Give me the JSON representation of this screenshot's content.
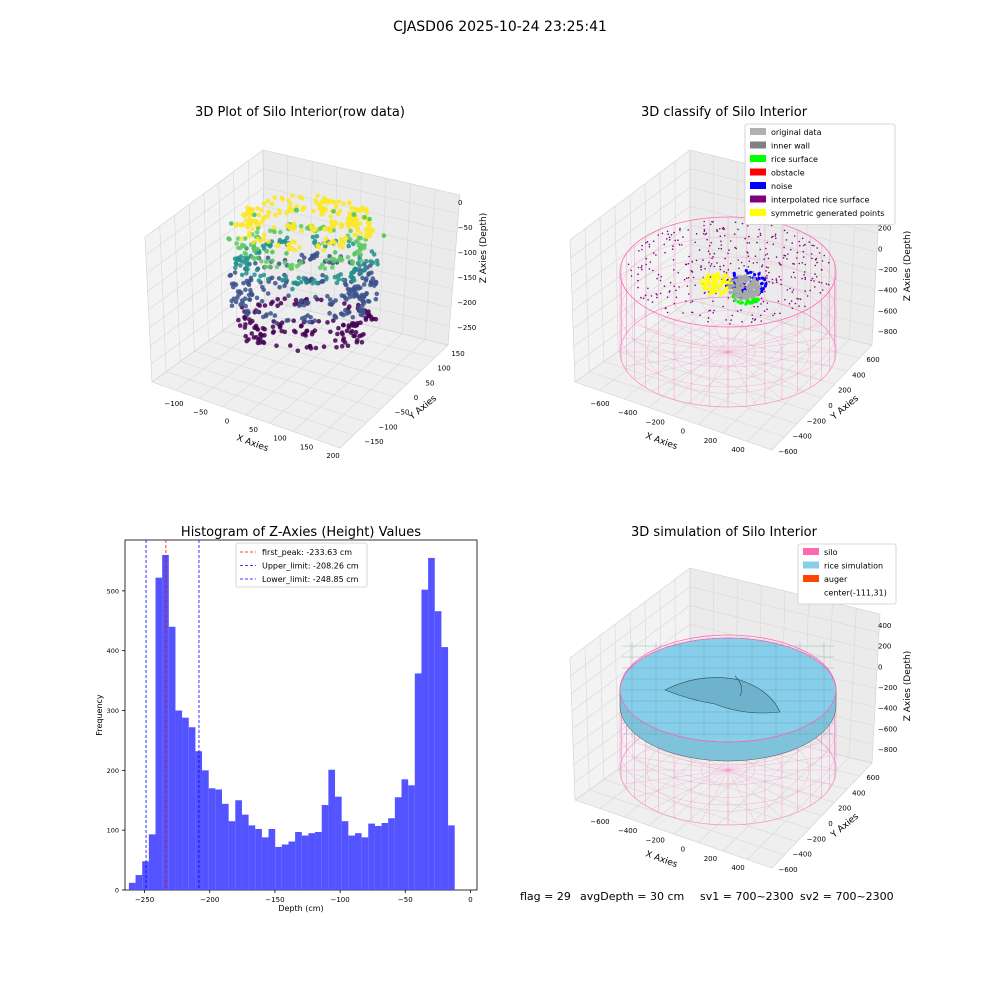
{
  "figure": {
    "suptitle": "CJASD06 2025-10-24 23:25:41",
    "status": {
      "flag": "flag = 29",
      "avg_depth": "avgDepth = 30 cm",
      "sv1": "sv1 = 700~2300",
      "sv2": "sv2 = 700~2300"
    }
  },
  "panel_raw": {
    "title": "3D Plot of Silo Interior(row data)",
    "xlabel": "X Axies",
    "ylabel": "Y Axies",
    "zlabel": "Z Axies (Depth)",
    "xticks": [
      "−100",
      "−50",
      "0",
      "50",
      "100",
      "150",
      "200"
    ],
    "yticks": [
      "150",
      "100",
      "50",
      "0",
      "−50",
      "−100",
      "−150"
    ],
    "zticks": [
      "0",
      "−50",
      "−100",
      "−150",
      "−200",
      "−250"
    ],
    "colormap": [
      "#440154",
      "#3b528b",
      "#21918c",
      "#5ec962",
      "#fde725"
    ]
  },
  "panel_classify": {
    "title": "3D classify of Silo Interior",
    "xlabel": "X Axies",
    "ylabel": "Y Axies",
    "zlabel": "Z Axies (Depth)",
    "xticks": [
      "−600",
      "−400",
      "−200",
      "0",
      "200",
      "400"
    ],
    "yticks": [
      "600",
      "400",
      "200",
      "0",
      "−200",
      "−400",
      "−600"
    ],
    "zticks": [
      "400",
      "200",
      "0",
      "−200",
      "−400",
      "−600",
      "−800"
    ],
    "legend": [
      {
        "label": "original data",
        "color": "#b0b0b0"
      },
      {
        "label": "inner wall",
        "color": "#808080"
      },
      {
        "label": "rice surface",
        "color": "#00ff00"
      },
      {
        "label": "obstacle",
        "color": "#ff0000"
      },
      {
        "label": "noise",
        "color": "#0000ff"
      },
      {
        "label": "interpolated rice surface",
        "color": "#800080"
      },
      {
        "label": "symmetric generated points",
        "color": "#ffff00"
      }
    ]
  },
  "panel_sim": {
    "title": "3D simulation of Silo Interior",
    "xlabel": "X Axies",
    "ylabel": "Y Axies",
    "zlabel": "Z Axies (Depth)",
    "xticks": [
      "−600",
      "−400",
      "−200",
      "0",
      "200",
      "400"
    ],
    "yticks": [
      "600",
      "400",
      "200",
      "0",
      "−200",
      "−400",
      "−600"
    ],
    "zticks": [
      "400",
      "200",
      "0",
      "−200",
      "−400",
      "−600",
      "−800"
    ],
    "legend": [
      {
        "label": "silo",
        "color": "#ff69b4"
      },
      {
        "label": "rice simulation",
        "color": "#87ceeb"
      },
      {
        "label": "auger",
        "color": "#ff4500"
      },
      {
        "label": "center(-111,31)",
        "color": ""
      }
    ]
  },
  "chart_data": {
    "type": "bar",
    "title": "Histogram of Z-Axies (Height) Values",
    "xlabel": "Depth (cm)",
    "ylabel": "Frequency",
    "xlim": [
      -265,
      5
    ],
    "ylim": [
      0,
      585
    ],
    "xticks": [
      -250,
      -200,
      -150,
      -100,
      -50,
      0
    ],
    "yticks": [
      0,
      100,
      200,
      300,
      400,
      500
    ],
    "bin_start": -262,
    "bin_width": 5.1,
    "color": "#4a4aff",
    "values": [
      12,
      25,
      48,
      93,
      522,
      560,
      440,
      300,
      288,
      272,
      232,
      200,
      170,
      168,
      144,
      115,
      150,
      126,
      108,
      102,
      88,
      102,
      72,
      76,
      81,
      97,
      91,
      95,
      97,
      142,
      201,
      156,
      115,
      91,
      95,
      88,
      111,
      107,
      112,
      120,
      155,
      185,
      175,
      362,
      502,
      555,
      466,
      406,
      108
    ],
    "lines": [
      {
        "x": -233.63,
        "color": "#ff0000",
        "label": "first_peak: -233.63 cm"
      },
      {
        "x": -208.26,
        "color": "#0000ff",
        "label": "Upper_limit: -208.26 cm"
      },
      {
        "x": -248.85,
        "color": "#0000ff",
        "label": "Lower_limit: -248.85 cm"
      }
    ]
  }
}
